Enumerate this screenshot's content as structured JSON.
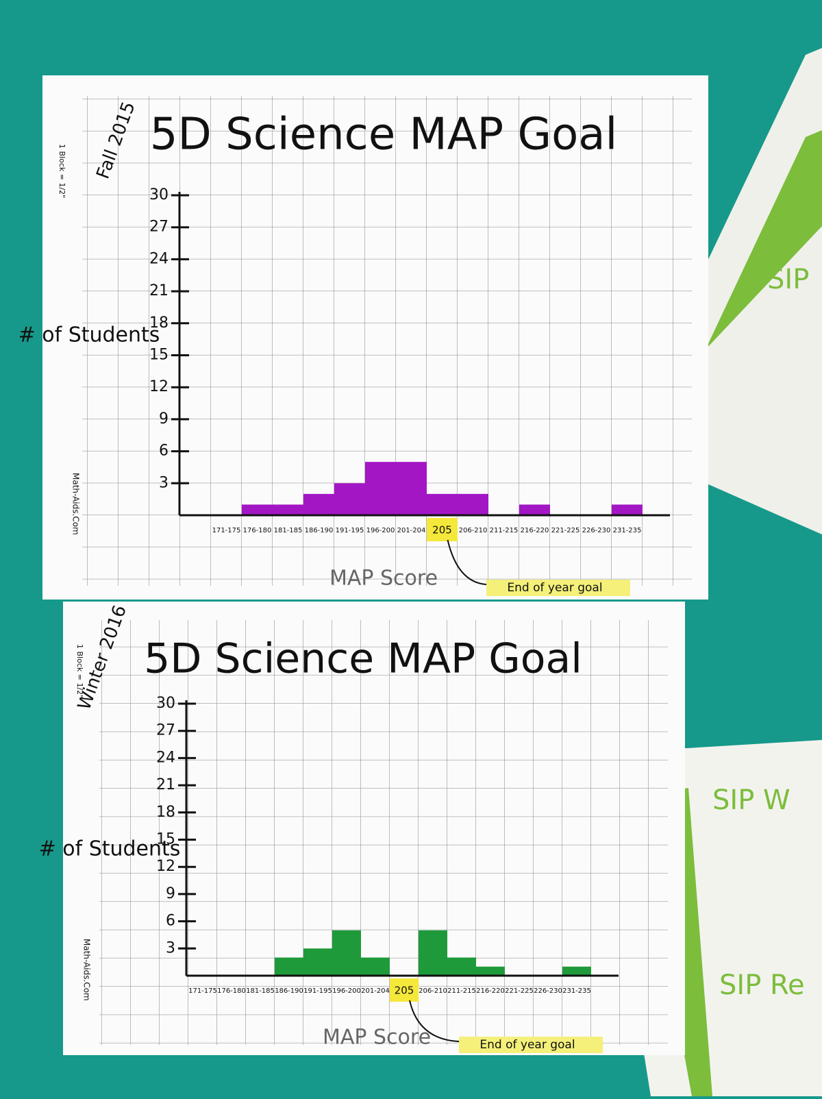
{
  "chart_data": [
    {
      "type": "bar",
      "title": "5D Science MAP Goal",
      "period": "Fall 2015",
      "y_label": "# of Students",
      "x_label": "MAP Score",
      "annotation": "End of year goal",
      "categories": [
        "171-175",
        "176-180",
        "181-185",
        "186-190",
        "191-195",
        "196-200",
        "201-204",
        "205",
        "206-210",
        "211-215",
        "216-220",
        "221-225",
        "226-230",
        "231-235"
      ],
      "values": [
        0,
        1,
        1,
        2,
        3,
        5,
        5,
        2,
        2,
        0,
        1,
        0,
        0,
        1
      ],
      "color": "#a316c4",
      "highlight_index": 7,
      "ylim": [
        0,
        30
      ],
      "yticks": [
        3,
        6,
        9,
        12,
        15,
        18,
        21,
        24,
        27,
        30
      ]
    },
    {
      "type": "bar",
      "title": "5D Science MAP Goal",
      "period": "Winter 2016",
      "y_label": "# of Students",
      "x_label": "MAP Score",
      "annotation": "End of year goal",
      "categories": [
        "171-175",
        "176-180",
        "181-185",
        "186-190",
        "191-195",
        "196-200",
        "201-204",
        "205",
        "206-210",
        "211-215",
        "216-220",
        "221-225",
        "226-230",
        "231-235"
      ],
      "values": [
        0,
        0,
        0,
        2,
        3,
        5,
        2,
        0,
        5,
        2,
        1,
        0,
        0,
        1
      ],
      "color": "#1f9a3a",
      "highlight_index": 7,
      "ylim": [
        0,
        30
      ],
      "yticks": [
        3,
        6,
        9,
        12,
        15,
        18,
        21,
        24,
        27,
        30
      ]
    }
  ],
  "paper_notes": [
    "1 Block = 1/2\"",
    "Math-Aids.Com"
  ],
  "posters": [
    "SIP",
    "SIP W",
    "SIP Re"
  ]
}
